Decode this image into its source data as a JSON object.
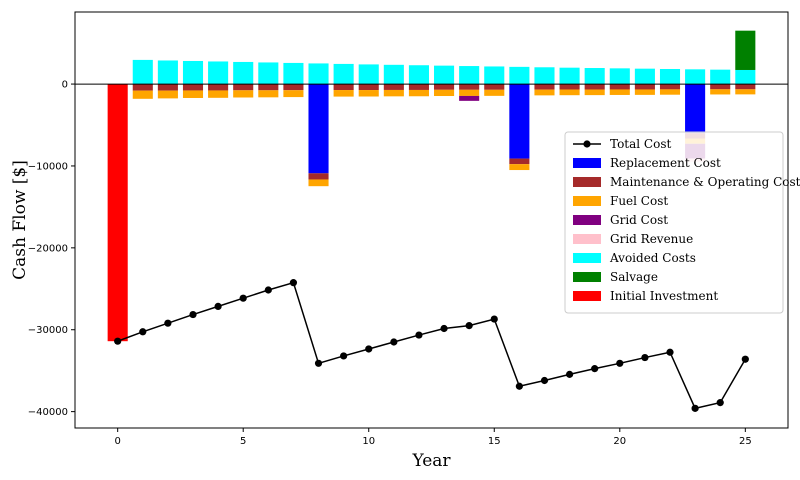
{
  "chart_data": {
    "type": "bar",
    "xlabel": "Year",
    "ylabel": "Cash Flow [$]",
    "xlim": [
      -1.7,
      26.7
    ],
    "ylim": [
      -42000,
      8800
    ],
    "xticks": [
      0,
      5,
      10,
      15,
      20,
      25
    ],
    "yticks": [
      -40000,
      -30000,
      -20000,
      -10000,
      0
    ],
    "ytick_labels": [
      "−40000",
      "−30000",
      "−20000",
      "−10000",
      "0"
    ],
    "grid": false,
    "legend_position": "center-right",
    "years": [
      0,
      1,
      2,
      3,
      4,
      5,
      6,
      7,
      8,
      9,
      10,
      11,
      12,
      13,
      14,
      15,
      16,
      17,
      18,
      19,
      20,
      21,
      22,
      23,
      24,
      25
    ],
    "series": [
      {
        "key": "replacement",
        "name": "Replacement Cost",
        "color": "#0000ff",
        "values": [
          0,
          0,
          0,
          0,
          0,
          0,
          0,
          0,
          -10900,
          0,
          0,
          0,
          0,
          0,
          0,
          0,
          -9100,
          0,
          0,
          0,
          0,
          0,
          0,
          -6000,
          0,
          0
        ]
      },
      {
        "key": "maintenance",
        "name": "Maintenance & Operating Cost",
        "color": "#a52a2a",
        "values": [
          0,
          -800,
          -800,
          -780,
          -780,
          -760,
          -760,
          -750,
          -750,
          -730,
          -730,
          -720,
          -720,
          -700,
          -700,
          -700,
          -680,
          -680,
          -670,
          -670,
          -660,
          -660,
          -650,
          -650,
          -640,
          -640
        ]
      },
      {
        "key": "fuel",
        "name": "Fuel Cost",
        "color": "#ffa500",
        "values": [
          0,
          -1000,
          -950,
          -920,
          -900,
          -880,
          -860,
          -840,
          -820,
          -800,
          -790,
          -780,
          -770,
          -760,
          -750,
          -740,
          -720,
          -700,
          -690,
          -680,
          -670,
          -660,
          -650,
          -640,
          -630,
          -620
        ]
      },
      {
        "key": "grid_cost",
        "name": "Grid Cost",
        "color": "#800080",
        "values": [
          0,
          0,
          0,
          0,
          0,
          0,
          0,
          0,
          0,
          0,
          0,
          0,
          0,
          0,
          -600,
          0,
          0,
          0,
          0,
          0,
          0,
          0,
          0,
          -1800,
          0,
          0
        ]
      },
      {
        "key": "grid_revenue",
        "name": "Grid Revenue",
        "color": "#ffc0cb",
        "values": [
          0,
          0,
          0,
          0,
          0,
          0,
          0,
          0,
          0,
          0,
          0,
          0,
          0,
          0,
          0,
          0,
          0,
          0,
          0,
          0,
          0,
          0,
          0,
          -400,
          0,
          0
        ]
      },
      {
        "key": "avoided",
        "name": "Avoided Costs",
        "color": "#00ffff",
        "values": [
          0,
          2950,
          2880,
          2820,
          2760,
          2700,
          2640,
          2580,
          2520,
          2460,
          2400,
          2350,
          2300,
          2250,
          2200,
          2150,
          2100,
          2050,
          2000,
          1960,
          1920,
          1880,
          1840,
          1800,
          1760,
          1720
        ]
      },
      {
        "key": "salvage",
        "name": "Salvage",
        "color": "#008000",
        "values": [
          0,
          0,
          0,
          0,
          0,
          0,
          0,
          0,
          0,
          0,
          0,
          0,
          0,
          0,
          0,
          0,
          0,
          0,
          0,
          0,
          0,
          0,
          0,
          0,
          0,
          4800
        ]
      },
      {
        "key": "initial",
        "name": "Initial Investment",
        "color": "#ff0000",
        "values": [
          -31400,
          0,
          0,
          0,
          0,
          0,
          0,
          0,
          0,
          0,
          0,
          0,
          0,
          0,
          0,
          0,
          0,
          0,
          0,
          0,
          0,
          0,
          0,
          0,
          0,
          0
        ]
      }
    ],
    "total_cost": {
      "name": "Total Cost",
      "color": "#000000",
      "values": [
        -31400,
        -30250,
        -29200,
        -28150,
        -27150,
        -26150,
        -25150,
        -24250,
        -34100,
        -33200,
        -32350,
        -31500,
        -30650,
        -29850,
        -29500,
        -28700,
        -36900,
        -36200,
        -35450,
        -34750,
        -34100,
        -33400,
        -32750,
        -39600,
        -38900,
        -33600
      ]
    },
    "legend_order": [
      "total_cost",
      "replacement",
      "maintenance",
      "fuel",
      "grid_cost",
      "grid_revenue",
      "avoided",
      "salvage",
      "initial"
    ]
  }
}
